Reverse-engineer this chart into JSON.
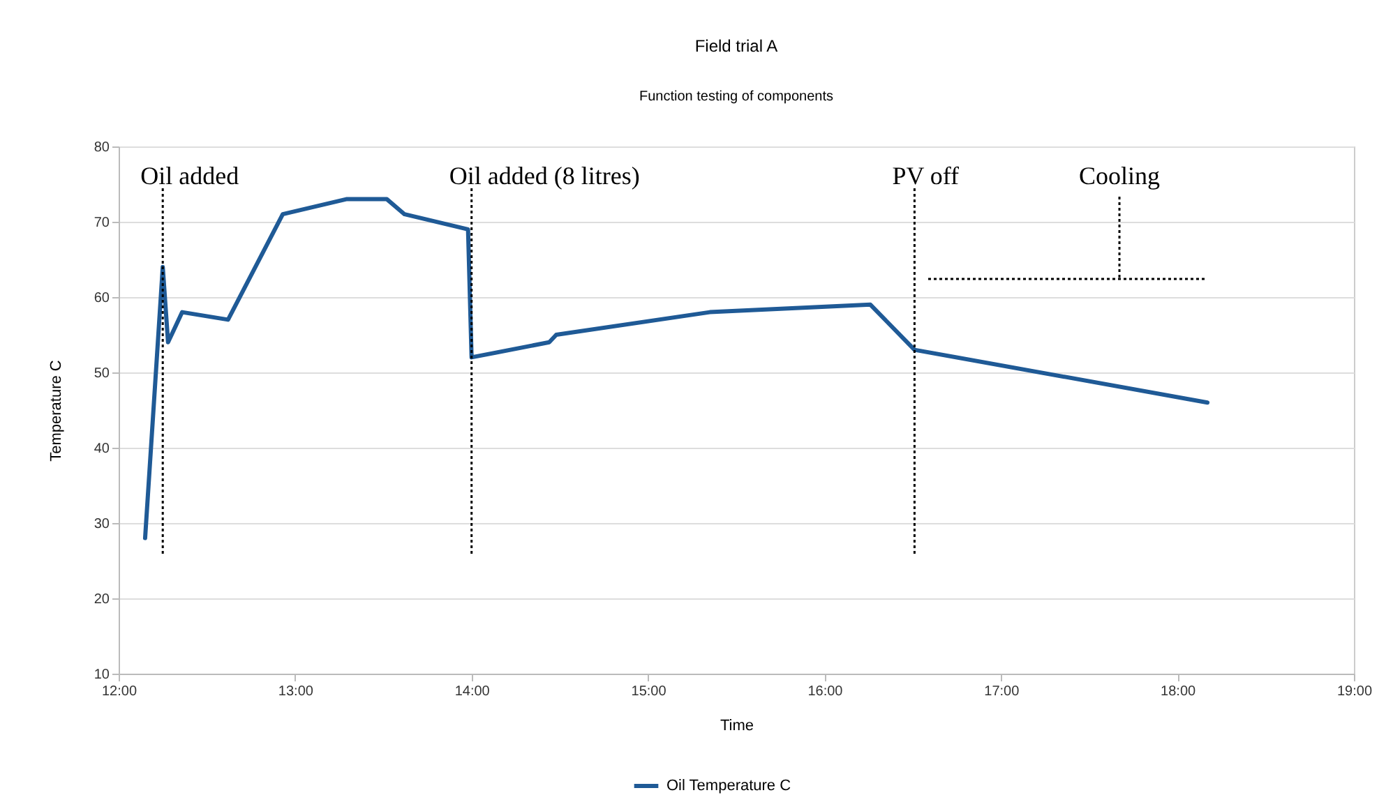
{
  "chart_data": {
    "type": "line",
    "title": "Field trial A",
    "subtitle": "Function testing of components",
    "xlabel": "Time",
    "ylabel": "Temperature C",
    "x": [
      12.15,
      12.25,
      12.28,
      12.36,
      12.62,
      12.93,
      13.29,
      13.52,
      13.62,
      13.98,
      14.0,
      14.44,
      14.48,
      15.35,
      16.26,
      16.51,
      18.17
    ],
    "series": [
      {
        "name": "Oil Temperature C",
        "color": "#1f5a96",
        "values": [
          28,
          64,
          54,
          58,
          57,
          71,
          73,
          73,
          71,
          69,
          52,
          54,
          55,
          58,
          59,
          53,
          46
        ]
      }
    ],
    "xlim": [
      12,
      19
    ],
    "xticks": [
      {
        "value": 12,
        "label": "12:00"
      },
      {
        "value": 13,
        "label": "13:00"
      },
      {
        "value": 14,
        "label": "14:00"
      },
      {
        "value": 15,
        "label": "15:00"
      },
      {
        "value": 16,
        "label": "16:00"
      },
      {
        "value": 17,
        "label": "17:00"
      },
      {
        "value": 18,
        "label": "18:00"
      },
      {
        "value": 19,
        "label": "19:00"
      }
    ],
    "ylim": [
      10,
      80
    ],
    "yticks": [
      10,
      20,
      30,
      40,
      50,
      60,
      70,
      80
    ],
    "grid": "y",
    "legend": "bottom",
    "ref_lines": [
      {
        "axis": "x",
        "value": 12.25,
        "label": "Oil added",
        "color": "#000000",
        "line_style": "dotted"
      },
      {
        "axis": "x",
        "value": 14.0,
        "label": "Oil added (8 litres)",
        "color": "#000000",
        "line_style": "dotted"
      },
      {
        "axis": "x",
        "value": 16.51,
        "label": "PV off",
        "color": "#000000",
        "line_style": "dotted"
      }
    ],
    "annotations": [
      "Cooling"
    ]
  }
}
